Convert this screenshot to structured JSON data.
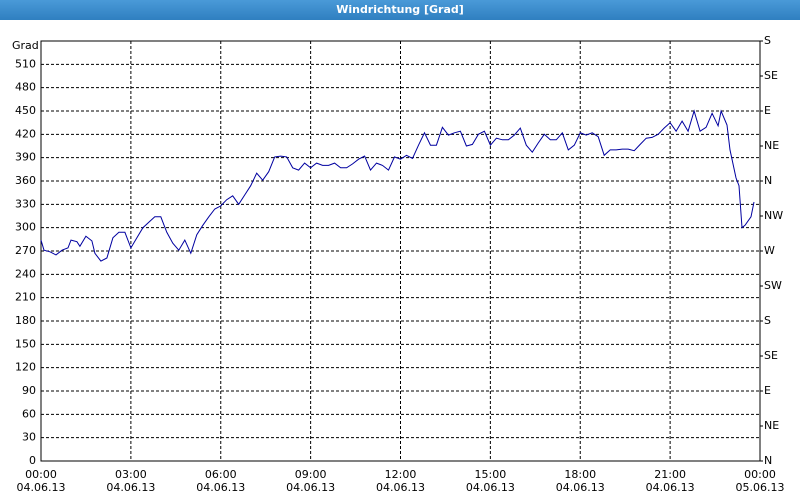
{
  "chart_data": {
    "type": "line",
    "title": "Windrichtung [Grad]",
    "y_label": "Grad",
    "color": "#0000a0",
    "grid": true,
    "x": [
      0,
      0.1,
      0.3,
      0.5,
      0.7,
      0.9,
      1.0,
      1.2,
      1.3,
      1.5,
      1.7,
      1.8,
      2.0,
      2.2,
      2.4,
      2.6,
      2.8,
      3.0,
      3.2,
      3.4,
      3.6,
      3.8,
      4.0,
      4.2,
      4.4,
      4.6,
      4.8,
      5.0,
      5.2,
      5.4,
      5.6,
      5.8,
      6.0,
      6.2,
      6.4,
      6.6,
      6.8,
      7.0,
      7.2,
      7.4,
      7.6,
      7.8,
      8.0,
      8.2,
      8.4,
      8.6,
      8.8,
      9.0,
      9.2,
      9.4,
      9.6,
      9.8,
      10.0,
      10.2,
      10.4,
      10.6,
      10.8,
      11.0,
      11.2,
      11.4,
      11.6,
      11.8,
      12.0,
      12.2,
      12.4,
      12.6,
      12.8,
      13.0,
      13.2,
      13.4,
      13.6,
      13.8,
      14.0,
      14.2,
      14.4,
      14.6,
      14.8,
      15.0,
      15.2,
      15.4,
      15.6,
      15.8,
      16.0,
      16.2,
      16.4,
      16.6,
      16.8,
      17.0,
      17.2,
      17.4,
      17.6,
      17.8,
      18.0,
      18.2,
      18.4,
      18.6,
      18.8,
      19.0,
      19.2,
      19.4,
      19.6,
      19.8,
      20.0,
      20.2,
      20.4,
      20.6,
      20.8,
      21.0,
      21.2,
      21.4,
      21.6,
      21.8,
      22.0,
      22.2,
      22.4,
      22.6,
      22.7,
      22.9,
      23.0,
      23.2,
      23.3,
      23.4,
      23.5,
      23.7,
      23.8
    ],
    "values": [
      284,
      271,
      269,
      265,
      271,
      274,
      284,
      282,
      276,
      289,
      283,
      267,
      257,
      261,
      287,
      294,
      294,
      274,
      287,
      300,
      307,
      314,
      314,
      294,
      280,
      271,
      284,
      267,
      291,
      303,
      314,
      324,
      328,
      336,
      341,
      330,
      342,
      354,
      370,
      361,
      372,
      391,
      392,
      391,
      377,
      374,
      383,
      377,
      383,
      380,
      380,
      383,
      377,
      377,
      382,
      388,
      392,
      374,
      383,
      380,
      374,
      391,
      388,
      393,
      389,
      406,
      422,
      406,
      406,
      429,
      419,
      422,
      424,
      405,
      407,
      420,
      424,
      406,
      415,
      413,
      413,
      419,
      428,
      406,
      397,
      409,
      420,
      413,
      413,
      422,
      400,
      406,
      422,
      419,
      422,
      417,
      393,
      400,
      400,
      401,
      401,
      399,
      407,
      415,
      416,
      420,
      428,
      435,
      424,
      437,
      424,
      450,
      424,
      429,
      447,
      431,
      450,
      432,
      400,
      364,
      354,
      300,
      303,
      314,
      333
    ],
    "xlim": [
      0,
      24
    ],
    "xticks": [
      {
        "value": 0,
        "label": "00:00\n04.06.13"
      },
      {
        "value": 3,
        "label": "03:00\n04.06.13"
      },
      {
        "value": 6,
        "label": "06:00\n04.06.13"
      },
      {
        "value": 9,
        "label": "09:00\n04.06.13"
      },
      {
        "value": 12,
        "label": "12:00\n04.06.13"
      },
      {
        "value": 15,
        "label": "15:00\n04.06.13"
      },
      {
        "value": 18,
        "label": "18:00\n04.06.13"
      },
      {
        "value": 21,
        "label": "21:00\n04.06.13"
      },
      {
        "value": 24,
        "label": "00:00\n05.06.13"
      }
    ],
    "ylim": [
      0,
      540
    ],
    "yticks": [
      0,
      30,
      60,
      90,
      120,
      150,
      180,
      210,
      240,
      270,
      300,
      330,
      360,
      390,
      420,
      450,
      480,
      510
    ],
    "y2lim": [
      0,
      540
    ],
    "y2ticks": [
      {
        "value": 0,
        "label": "N"
      },
      {
        "value": 45,
        "label": "NE"
      },
      {
        "value": 90,
        "label": "E"
      },
      {
        "value": 135,
        "label": "SE"
      },
      {
        "value": 180,
        "label": "S"
      },
      {
        "value": 225,
        "label": "SW"
      },
      {
        "value": 270,
        "label": "W"
      },
      {
        "value": 315,
        "label": "NW"
      },
      {
        "value": 360,
        "label": "N"
      },
      {
        "value": 405,
        "label": "NE"
      },
      {
        "value": 450,
        "label": "E"
      },
      {
        "value": 495,
        "label": "SE"
      },
      {
        "value": 540,
        "label": "S"
      }
    ]
  }
}
